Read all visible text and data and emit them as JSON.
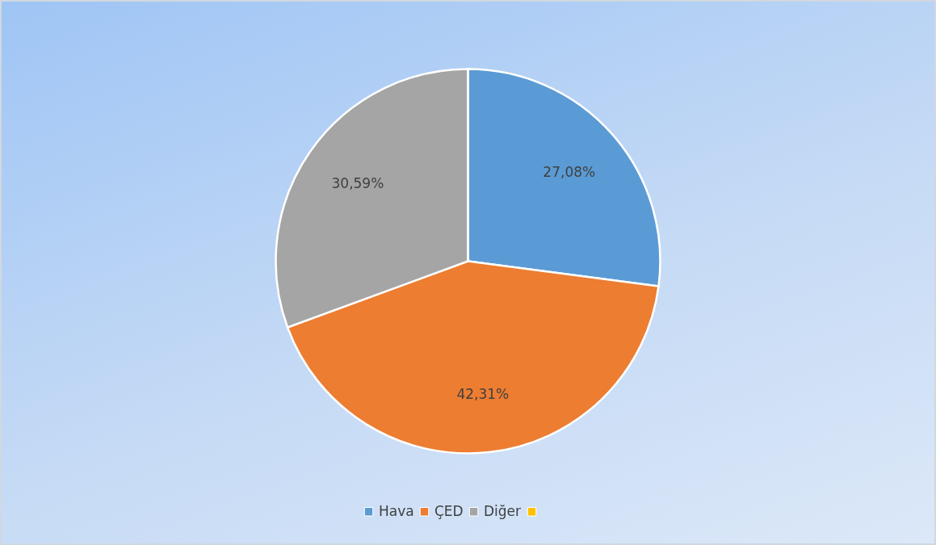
{
  "chart_data": {
    "type": "pie",
    "categories": [
      "Hava",
      "ÇED",
      "Diğer",
      null
    ],
    "values": [
      27.08,
      42.31,
      30.59,
      0
    ],
    "colors": [
      "#5b9bd5",
      "#ed7d31",
      "#a5a5a5",
      "#ffc000"
    ],
    "value_labels": [
      "27,08%",
      "42,31%",
      "30,59%",
      null
    ],
    "legend": "bottom"
  }
}
